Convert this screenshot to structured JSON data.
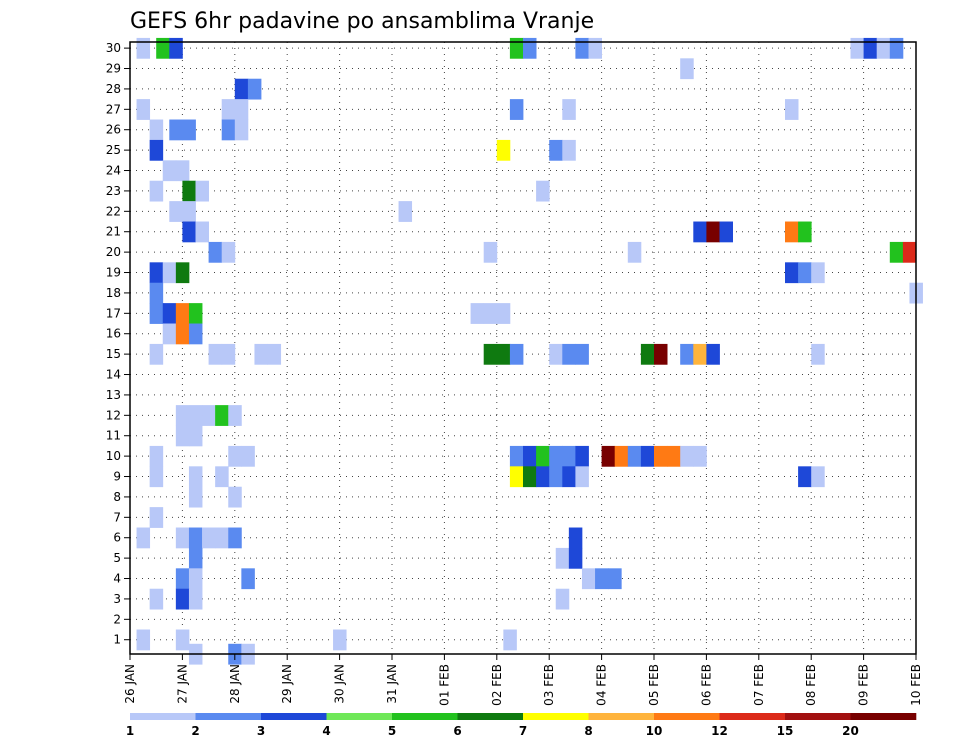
{
  "chart_data": {
    "type": "heatmap",
    "title": "GEFS 6hr padavine po ansamblima Vranje",
    "x_tick_labels": [
      "26 JAN",
      "27 JAN",
      "28 JAN",
      "29 JAN",
      "30 JAN",
      "31 JAN",
      "01 FEB",
      "02 FEB",
      "03 FEB",
      "04 FEB",
      "05 FEB",
      "06 FEB",
      "07 FEB",
      "08 FEB",
      "09 FEB",
      "10 FEB"
    ],
    "y_tick_labels": [
      "1",
      "2",
      "3",
      "4",
      "5",
      "6",
      "7",
      "8",
      "9",
      "10",
      "11",
      "12",
      "13",
      "14",
      "15",
      "16",
      "17",
      "18",
      "19",
      "20",
      "21",
      "22",
      "23",
      "24",
      "25",
      "26",
      "27",
      "28",
      "29",
      "30"
    ],
    "x_range": [
      0,
      60
    ],
    "y_range": [
      0.3,
      30.3
    ],
    "x_unit_note": "6-hour steps from 26 JAN",
    "grid": true,
    "colorbar": {
      "labels": [
        "1",
        "2",
        "3",
        "4",
        "5",
        "6",
        "7",
        "8",
        "10",
        "12",
        "15",
        "20"
      ],
      "colors": [
        "#b8c8f8",
        "#5a8af0",
        "#1e48d8",
        "#6fe858",
        "#22c21e",
        "#0f7a10",
        "#ffff00",
        "#ffb43c",
        "#ff7a14",
        "#dc2a1a",
        "#a21010",
        "#780000"
      ]
    },
    "cells": [
      [
        0.5,
        30,
        1
      ],
      [
        2,
        30,
        5
      ],
      [
        3,
        30,
        3
      ],
      [
        29,
        30,
        5
      ],
      [
        30,
        30,
        2
      ],
      [
        34,
        30,
        2
      ],
      [
        35,
        30,
        1
      ],
      [
        55,
        30,
        1
      ],
      [
        56,
        30,
        3
      ],
      [
        57,
        30,
        1
      ],
      [
        58,
        30,
        2
      ],
      [
        42,
        29,
        1
      ],
      [
        8,
        28,
        3
      ],
      [
        9,
        28,
        2
      ],
      [
        0.5,
        27,
        1
      ],
      [
        7,
        27,
        1
      ],
      [
        8,
        27,
        1
      ],
      [
        29,
        27,
        2
      ],
      [
        33,
        27,
        1
      ],
      [
        50,
        27,
        1
      ],
      [
        1.5,
        26,
        1
      ],
      [
        3,
        26,
        2
      ],
      [
        4,
        26,
        2
      ],
      [
        7,
        26,
        2
      ],
      [
        8,
        26,
        1
      ],
      [
        1.5,
        25,
        3
      ],
      [
        28,
        25,
        7
      ],
      [
        32,
        25,
        2
      ],
      [
        33,
        25,
        1
      ],
      [
        2.5,
        24,
        1
      ],
      [
        3.5,
        24,
        1
      ],
      [
        1.5,
        23,
        1
      ],
      [
        4,
        23,
        6
      ],
      [
        5,
        23,
        1
      ],
      [
        31,
        23,
        1
      ],
      [
        3,
        22,
        1
      ],
      [
        4,
        22,
        1
      ],
      [
        20.5,
        22,
        1
      ],
      [
        4,
        21,
        3
      ],
      [
        5,
        21,
        1
      ],
      [
        43,
        21,
        3
      ],
      [
        44,
        21,
        12
      ],
      [
        45,
        21,
        3
      ],
      [
        50,
        21,
        9
      ],
      [
        51,
        21,
        5
      ],
      [
        6,
        20,
        2
      ],
      [
        7,
        20,
        1
      ],
      [
        27,
        20,
        1
      ],
      [
        38,
        20,
        1
      ],
      [
        58,
        20,
        5
      ],
      [
        59,
        20,
        10
      ],
      [
        1.5,
        19,
        3
      ],
      [
        2.5,
        19,
        1
      ],
      [
        3.5,
        19,
        6
      ],
      [
        50,
        19,
        3
      ],
      [
        51,
        19,
        2
      ],
      [
        52,
        19,
        1
      ],
      [
        1.5,
        18,
        2
      ],
      [
        59.5,
        18,
        1
      ],
      [
        1.5,
        17,
        2
      ],
      [
        2.5,
        17,
        3
      ],
      [
        3.5,
        17,
        9
      ],
      [
        4.5,
        17,
        5
      ],
      [
        26,
        17,
        1
      ],
      [
        27,
        17,
        1
      ],
      [
        28,
        17,
        1
      ],
      [
        2.5,
        16,
        1
      ],
      [
        3.5,
        16,
        9
      ],
      [
        4.5,
        16,
        2
      ],
      [
        1.5,
        15,
        1
      ],
      [
        6,
        15,
        1
      ],
      [
        7,
        15,
        1
      ],
      [
        9.5,
        15,
        1
      ],
      [
        10.5,
        15,
        1
      ],
      [
        27,
        15,
        6
      ],
      [
        28,
        15,
        6
      ],
      [
        29,
        15,
        2
      ],
      [
        32,
        15,
        1
      ],
      [
        33,
        15,
        2
      ],
      [
        34,
        15,
        2
      ],
      [
        39,
        15,
        6
      ],
      [
        40,
        15,
        12
      ],
      [
        42,
        15,
        2
      ],
      [
        43,
        15,
        8
      ],
      [
        44,
        15,
        3
      ],
      [
        52,
        15,
        1
      ],
      [
        3.5,
        12,
        1
      ],
      [
        4.5,
        12,
        1
      ],
      [
        5.5,
        12,
        1
      ],
      [
        6.5,
        12,
        5
      ],
      [
        7.5,
        12,
        1
      ],
      [
        3.5,
        11,
        1
      ],
      [
        4.5,
        11,
        1
      ],
      [
        1.5,
        10,
        1
      ],
      [
        7.5,
        10,
        1
      ],
      [
        8.5,
        10,
        1
      ],
      [
        29,
        10,
        2
      ],
      [
        30,
        10,
        3
      ],
      [
        31,
        10,
        5
      ],
      [
        32,
        10,
        2
      ],
      [
        33,
        10,
        2
      ],
      [
        34,
        10,
        3
      ],
      [
        36,
        10,
        12
      ],
      [
        37,
        10,
        9
      ],
      [
        38,
        10,
        2
      ],
      [
        39,
        10,
        3
      ],
      [
        40,
        10,
        9
      ],
      [
        41,
        10,
        9
      ],
      [
        42,
        10,
        1
      ],
      [
        43,
        10,
        1
      ],
      [
        1.5,
        9,
        1
      ],
      [
        4.5,
        9,
        1
      ],
      [
        6.5,
        9,
        1
      ],
      [
        29,
        9,
        7
      ],
      [
        30,
        9,
        6
      ],
      [
        31,
        9,
        3
      ],
      [
        32,
        9,
        2
      ],
      [
        33,
        9,
        3
      ],
      [
        34,
        9,
        1
      ],
      [
        51,
        9,
        3
      ],
      [
        52,
        9,
        1
      ],
      [
        4.5,
        8,
        1
      ],
      [
        7.5,
        8,
        1
      ],
      [
        1.5,
        7,
        1
      ],
      [
        0.5,
        6,
        1
      ],
      [
        3.5,
        6,
        1
      ],
      [
        4.5,
        6,
        2
      ],
      [
        5.5,
        6,
        1
      ],
      [
        6.5,
        6,
        1
      ],
      [
        7.5,
        6,
        2
      ],
      [
        33.5,
        6,
        3
      ],
      [
        4.5,
        5,
        2
      ],
      [
        32.5,
        5,
        1
      ],
      [
        33.5,
        5,
        3
      ],
      [
        3.5,
        4,
        2
      ],
      [
        4.5,
        4,
        1
      ],
      [
        8.5,
        4,
        2
      ],
      [
        34.5,
        4,
        1
      ],
      [
        35.5,
        4,
        2
      ],
      [
        36.5,
        4,
        2
      ],
      [
        1.5,
        3,
        1
      ],
      [
        3.5,
        3,
        3
      ],
      [
        4.5,
        3,
        1
      ],
      [
        32.5,
        3,
        1
      ],
      [
        0.5,
        1,
        1
      ],
      [
        3.5,
        1,
        1
      ],
      [
        15.5,
        1,
        1
      ],
      [
        28.5,
        1,
        1
      ],
      [
        4.5,
        0.3,
        1
      ],
      [
        7.5,
        0.3,
        2
      ],
      [
        8.5,
        0.3,
        1
      ]
    ]
  }
}
